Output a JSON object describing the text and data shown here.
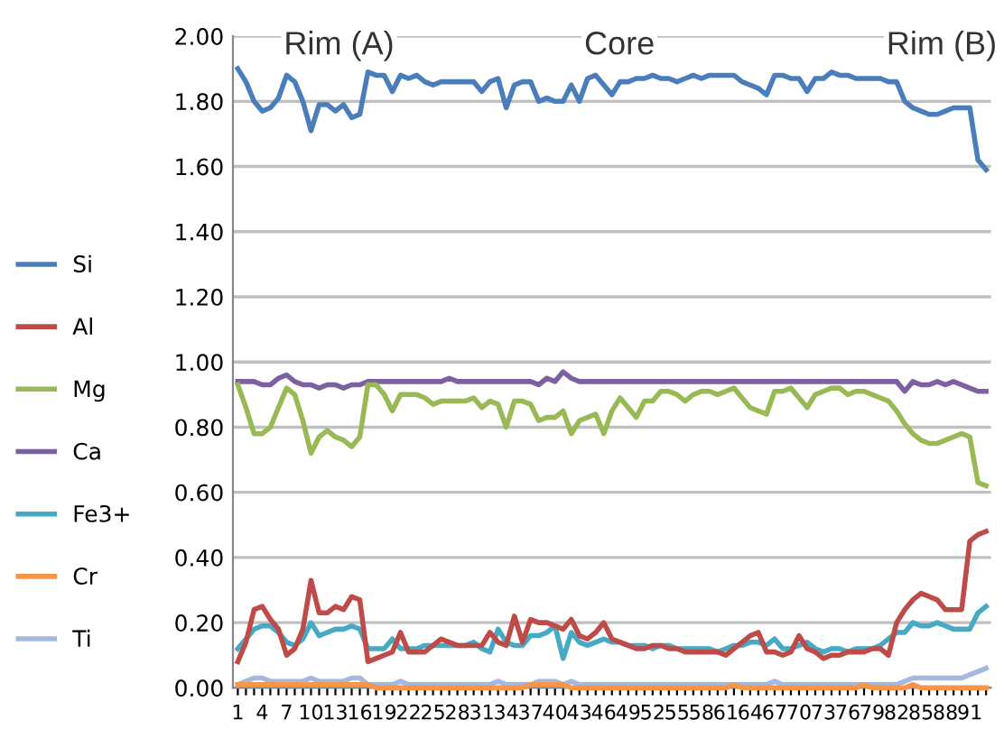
{
  "chart_data": {
    "type": "line",
    "categories": [
      "1",
      null,
      null,
      "4",
      null,
      null,
      "7",
      null,
      null,
      "10",
      null,
      null,
      "13",
      null,
      null,
      "16",
      null,
      null,
      "19",
      null,
      null,
      "22",
      null,
      null,
      "25",
      null,
      null,
      "28",
      null,
      null,
      "31",
      null,
      null,
      "34",
      null,
      null,
      "37",
      null,
      null,
      "40",
      null,
      null,
      "43",
      null,
      null,
      "46",
      null,
      null,
      "49",
      null,
      null,
      "52",
      null,
      null,
      "55",
      null,
      null,
      "58",
      null,
      null,
      "61",
      null,
      null,
      "64",
      null,
      null,
      "67",
      null,
      null,
      "70",
      null,
      null,
      "73",
      null,
      null,
      "76",
      null,
      null,
      "79",
      null,
      null,
      "82",
      null,
      null,
      "85",
      null,
      null,
      "88",
      null,
      null,
      "91",
      null,
      null
    ],
    "series": [
      {
        "name": "Si",
        "color": "#4a7ebb",
        "values": [
          1.9,
          1.86,
          1.8,
          1.77,
          1.78,
          1.81,
          1.88,
          1.86,
          1.8,
          1.71,
          1.79,
          1.79,
          1.77,
          1.79,
          1.75,
          1.76,
          1.89,
          1.88,
          1.88,
          1.83,
          1.88,
          1.87,
          1.88,
          1.86,
          1.85,
          1.86,
          1.86,
          1.86,
          1.86,
          1.86,
          1.83,
          1.86,
          1.87,
          1.78,
          1.85,
          1.86,
          1.86,
          1.8,
          1.81,
          1.8,
          1.8,
          1.85,
          1.8,
          1.87,
          1.88,
          1.85,
          1.82,
          1.86,
          1.86,
          1.87,
          1.87,
          1.88,
          1.87,
          1.87,
          1.86,
          1.87,
          1.88,
          1.87,
          1.88,
          1.88,
          1.88,
          1.88,
          1.86,
          1.85,
          1.84,
          1.82,
          1.88,
          1.88,
          1.87,
          1.87,
          1.83,
          1.87,
          1.87,
          1.89,
          1.88,
          1.88,
          1.87,
          1.87,
          1.87,
          1.87,
          1.86,
          1.86,
          1.8,
          1.78,
          1.77,
          1.76,
          1.76,
          1.77,
          1.78,
          1.78,
          1.78,
          1.62,
          1.59
        ]
      },
      {
        "name": "Al",
        "color": "#be4b48",
        "values": [
          0.08,
          0.14,
          0.24,
          0.25,
          0.21,
          0.18,
          0.1,
          0.12,
          0.18,
          0.33,
          0.23,
          0.23,
          0.25,
          0.24,
          0.28,
          0.27,
          0.08,
          0.09,
          0.1,
          0.11,
          0.17,
          0.11,
          0.11,
          0.11,
          0.13,
          0.15,
          0.14,
          0.13,
          0.13,
          0.13,
          0.13,
          0.17,
          0.14,
          0.13,
          0.22,
          0.14,
          0.21,
          0.2,
          0.2,
          0.19,
          0.18,
          0.21,
          0.16,
          0.15,
          0.17,
          0.2,
          0.15,
          0.14,
          0.13,
          0.12,
          0.12,
          0.13,
          0.13,
          0.12,
          0.12,
          0.11,
          0.11,
          0.11,
          0.11,
          0.11,
          0.1,
          0.12,
          0.14,
          0.16,
          0.17,
          0.11,
          0.11,
          0.1,
          0.11,
          0.16,
          0.12,
          0.11,
          0.09,
          0.1,
          0.1,
          0.11,
          0.11,
          0.11,
          0.12,
          0.12,
          0.1,
          0.2,
          0.24,
          0.27,
          0.29,
          0.28,
          0.27,
          0.24,
          0.24,
          0.24,
          0.45,
          0.47,
          0.48
        ]
      },
      {
        "name": "Mg",
        "color": "#98b954",
        "values": [
          0.93,
          0.86,
          0.78,
          0.78,
          0.8,
          0.86,
          0.92,
          0.9,
          0.82,
          0.72,
          0.77,
          0.79,
          0.77,
          0.76,
          0.74,
          0.77,
          0.93,
          0.93,
          0.9,
          0.85,
          0.9,
          0.9,
          0.9,
          0.89,
          0.87,
          0.88,
          0.88,
          0.88,
          0.88,
          0.89,
          0.86,
          0.88,
          0.87,
          0.8,
          0.88,
          0.88,
          0.87,
          0.82,
          0.83,
          0.83,
          0.85,
          0.78,
          0.82,
          0.83,
          0.84,
          0.78,
          0.85,
          0.89,
          0.86,
          0.83,
          0.88,
          0.88,
          0.91,
          0.91,
          0.9,
          0.88,
          0.9,
          0.91,
          0.91,
          0.9,
          0.91,
          0.92,
          0.89,
          0.86,
          0.85,
          0.84,
          0.91,
          0.91,
          0.92,
          0.89,
          0.86,
          0.9,
          0.91,
          0.92,
          0.92,
          0.9,
          0.91,
          0.91,
          0.9,
          0.89,
          0.88,
          0.85,
          0.81,
          0.78,
          0.76,
          0.75,
          0.75,
          0.76,
          0.77,
          0.78,
          0.77,
          0.63,
          0.62
        ]
      },
      {
        "name": "Ca",
        "color": "#7d60a0",
        "values": [
          0.94,
          0.94,
          0.94,
          0.93,
          0.93,
          0.95,
          0.96,
          0.94,
          0.93,
          0.93,
          0.92,
          0.93,
          0.93,
          0.92,
          0.93,
          0.93,
          0.94,
          0.94,
          0.94,
          0.94,
          0.94,
          0.94,
          0.94,
          0.94,
          0.94,
          0.94,
          0.95,
          0.94,
          0.94,
          0.94,
          0.94,
          0.94,
          0.94,
          0.94,
          0.94,
          0.94,
          0.94,
          0.93,
          0.95,
          0.94,
          0.97,
          0.95,
          0.94,
          0.94,
          0.94,
          0.94,
          0.94,
          0.94,
          0.94,
          0.94,
          0.94,
          0.94,
          0.94,
          0.94,
          0.94,
          0.94,
          0.94,
          0.94,
          0.94,
          0.94,
          0.94,
          0.94,
          0.94,
          0.94,
          0.94,
          0.94,
          0.94,
          0.94,
          0.94,
          0.94,
          0.94,
          0.94,
          0.94,
          0.94,
          0.94,
          0.94,
          0.94,
          0.94,
          0.94,
          0.94,
          0.94,
          0.94,
          0.91,
          0.94,
          0.93,
          0.93,
          0.94,
          0.93,
          0.94,
          0.93,
          0.92,
          0.91,
          0.91
        ]
      },
      {
        "name": "Fe3+",
        "color": "#46aac5",
        "values": [
          0.12,
          0.15,
          0.18,
          0.19,
          0.19,
          0.17,
          0.14,
          0.13,
          0.15,
          0.2,
          0.16,
          0.17,
          0.18,
          0.18,
          0.19,
          0.18,
          0.12,
          0.12,
          0.12,
          0.15,
          0.12,
          0.12,
          0.12,
          0.13,
          0.13,
          0.13,
          0.13,
          0.13,
          0.13,
          0.14,
          0.12,
          0.11,
          0.18,
          0.14,
          0.13,
          0.13,
          0.16,
          0.16,
          0.17,
          0.19,
          0.09,
          0.17,
          0.14,
          0.13,
          0.14,
          0.15,
          0.14,
          0.14,
          0.13,
          0.13,
          0.13,
          0.12,
          0.13,
          0.13,
          0.12,
          0.12,
          0.12,
          0.12,
          0.12,
          0.11,
          0.12,
          0.13,
          0.13,
          0.14,
          0.14,
          0.13,
          0.15,
          0.12,
          0.12,
          0.13,
          0.14,
          0.12,
          0.11,
          0.12,
          0.12,
          0.11,
          0.12,
          0.12,
          0.12,
          0.13,
          0.15,
          0.17,
          0.17,
          0.2,
          0.19,
          0.19,
          0.2,
          0.19,
          0.18,
          0.18,
          0.18,
          0.23,
          0.25
        ]
      },
      {
        "name": "Cr",
        "color": "#f79646",
        "values": [
          0.01,
          0.01,
          0.01,
          0.01,
          0.01,
          0.01,
          0.01,
          0.01,
          0.01,
          0.01,
          0.01,
          0.01,
          0.01,
          0.01,
          0.01,
          0.01,
          0.01,
          0.0,
          0.0,
          0.0,
          0.0,
          0.0,
          0.0,
          0.0,
          0.0,
          0.0,
          0.0,
          0.0,
          0.0,
          0.0,
          0.0,
          0.0,
          0.0,
          0.0,
          0.0,
          0.0,
          0.01,
          0.01,
          0.01,
          0.01,
          0.01,
          0.0,
          0.0,
          0.0,
          0.0,
          0.0,
          0.0,
          0.0,
          0.0,
          0.0,
          0.0,
          0.0,
          0.0,
          0.0,
          0.0,
          0.0,
          0.0,
          0.0,
          0.0,
          0.0,
          0.0,
          0.01,
          0.0,
          0.0,
          0.0,
          0.0,
          0.0,
          0.0,
          0.0,
          0.0,
          0.0,
          0.0,
          0.0,
          0.0,
          0.0,
          0.0,
          0.0,
          0.01,
          0.0,
          0.0,
          0.0,
          0.0,
          0.0,
          0.01,
          0.0,
          0.0,
          0.0,
          0.0,
          0.0,
          0.0,
          0.0,
          0.0,
          0.0
        ]
      },
      {
        "name": "Ti",
        "color": "#a5b9e0",
        "values": [
          0.01,
          0.02,
          0.03,
          0.03,
          0.02,
          0.02,
          0.02,
          0.02,
          0.02,
          0.03,
          0.02,
          0.02,
          0.02,
          0.02,
          0.03,
          0.03,
          0.01,
          0.01,
          0.01,
          0.01,
          0.02,
          0.01,
          0.01,
          0.01,
          0.01,
          0.01,
          0.01,
          0.01,
          0.01,
          0.01,
          0.01,
          0.01,
          0.02,
          0.01,
          0.01,
          0.01,
          0.01,
          0.02,
          0.02,
          0.02,
          0.01,
          0.02,
          0.01,
          0.01,
          0.01,
          0.01,
          0.01,
          0.01,
          0.01,
          0.01,
          0.01,
          0.01,
          0.01,
          0.01,
          0.01,
          0.01,
          0.01,
          0.01,
          0.01,
          0.01,
          0.01,
          0.01,
          0.01,
          0.01,
          0.01,
          0.01,
          0.02,
          0.01,
          0.01,
          0.01,
          0.01,
          0.01,
          0.01,
          0.01,
          0.01,
          0.01,
          0.01,
          0.01,
          0.01,
          0.01,
          0.01,
          0.01,
          0.02,
          0.03,
          0.03,
          0.03,
          0.03,
          0.03,
          0.03,
          0.03,
          0.04,
          0.05,
          0.06
        ]
      }
    ],
    "ylim": [
      0,
      2.0
    ],
    "yticks": [
      {
        "value": 0,
        "label": "0.00"
      },
      {
        "value": 0.2,
        "label": "0.20"
      },
      {
        "value": 0.4,
        "label": "0.40"
      },
      {
        "value": 0.6,
        "label": "0.60"
      },
      {
        "value": 0.8,
        "label": "0.80"
      },
      {
        "value": 1.0,
        "label": "1.00"
      },
      {
        "value": 1.2,
        "label": "1.20"
      },
      {
        "value": 1.4,
        "label": "1.40"
      },
      {
        "value": 1.6,
        "label": "1.60"
      },
      {
        "value": 1.8,
        "label": "1.80"
      },
      {
        "value": 2.0,
        "label": "2.00"
      }
    ],
    "grid": "y",
    "legend": "left",
    "marker": "none",
    "line_style": "solid",
    "annotations": [
      "Rim (A)",
      "Core",
      "Rim (B)"
    ]
  }
}
